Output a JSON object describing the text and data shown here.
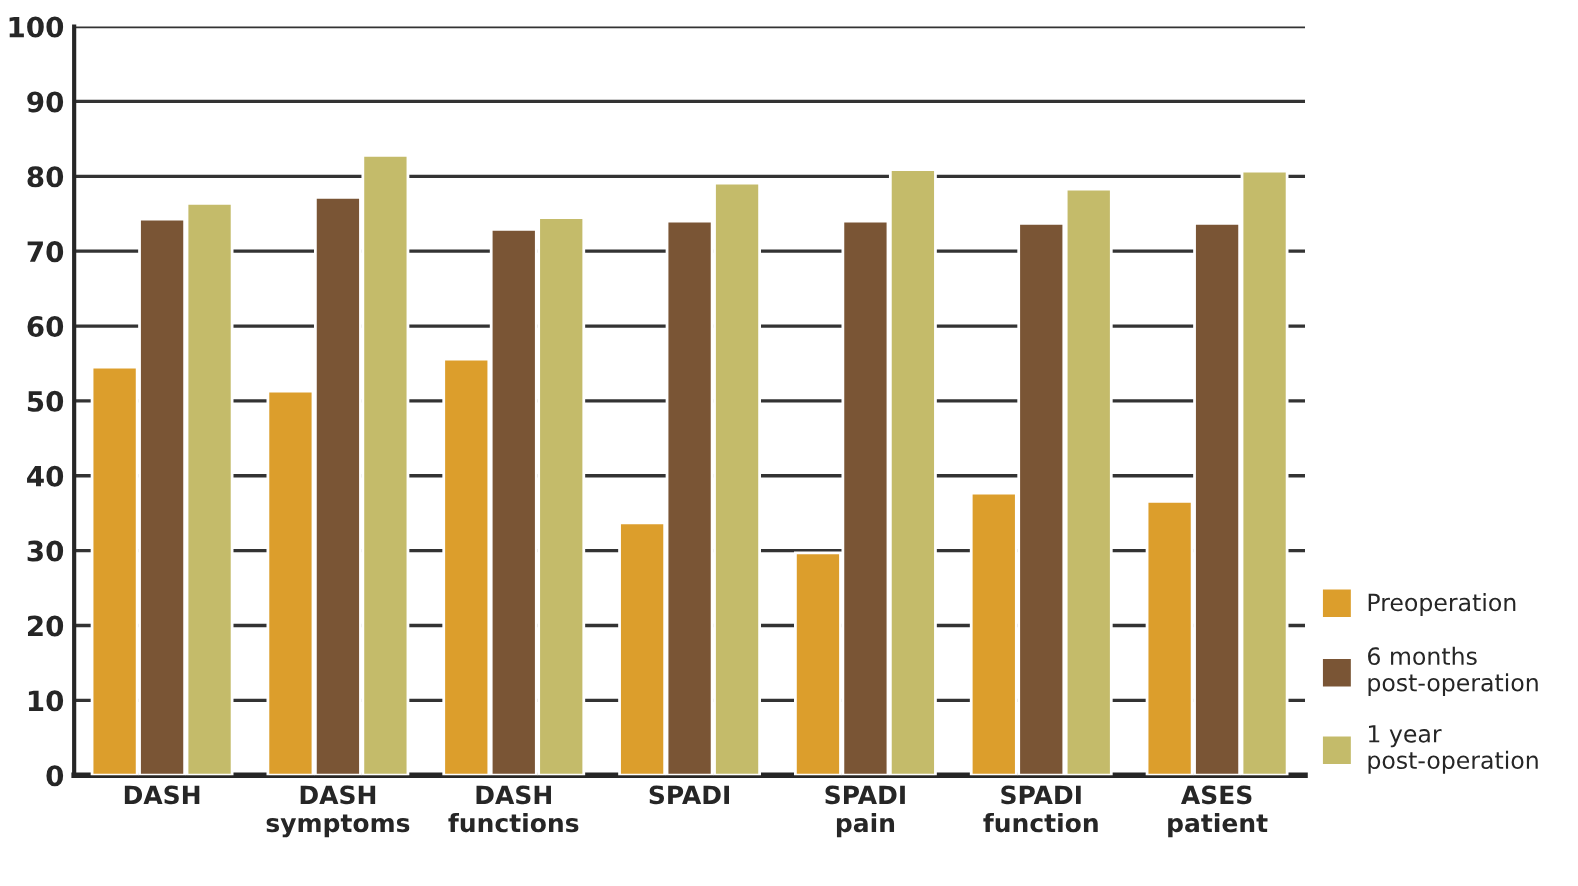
{
  "chart_data": {
    "type": "bar",
    "categories": [
      "DASH",
      "DASH\nsymptoms",
      "DASH\nfunctions",
      "SPADI",
      "SPADI\npain",
      "SPADI\nfunction",
      "ASES\npatient"
    ],
    "series": [
      {
        "name": "Preoperation",
        "color": "#dc9e2c",
        "values": [
          54.5,
          51.3,
          55.6,
          33.7,
          29.7,
          37.7,
          36.6
        ]
      },
      {
        "name": "6 months\npost-operation",
        "color": "#7a5535",
        "values": [
          74.3,
          77.2,
          72.9,
          74.0,
          74.0,
          73.7,
          73.7
        ]
      },
      {
        "name": "1 year\npost-operation",
        "color": "#c4bb6a",
        "values": [
          76.4,
          82.8,
          74.5,
          79.1,
          80.9,
          78.3,
          80.7
        ]
      }
    ],
    "ylim": [
      0,
      100
    ],
    "yticks": [
      0,
      10,
      20,
      30,
      40,
      50,
      60,
      70,
      80,
      90,
      100
    ],
    "grid": "y",
    "legend": "bottom right"
  }
}
